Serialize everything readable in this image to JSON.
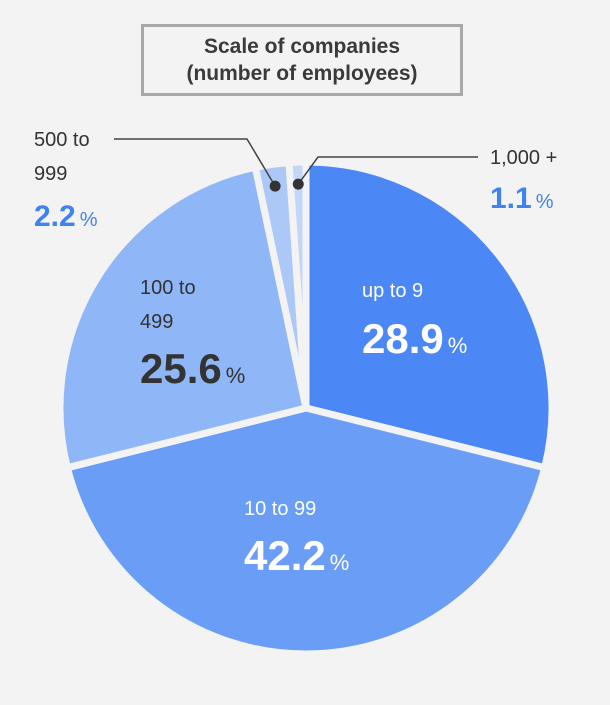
{
  "chart_data": {
    "type": "pie",
    "title_lines": [
      "Scale of companies",
      "(number of employees)"
    ],
    "colors": {
      "up_to_9": "#4b88f5",
      "10_to_99": "#6a9df5",
      "100_to_499": "#8fb6f6",
      "500_to_999": "#abc8f7",
      "1000_plus": "#c2d6f8",
      "separator": "#f3f3f3",
      "leader": "#444444",
      "blue_text": "#3f82f2",
      "dark_text": "#333333",
      "white_text": "#ffffff"
    },
    "slices": [
      {
        "key": "up_to_9",
        "label_lines": [
          "up to 9"
        ],
        "value": 28.9,
        "value_text": "28.9",
        "unit": "%"
      },
      {
        "key": "10_to_99",
        "label_lines": [
          "10 to 99"
        ],
        "value": 42.2,
        "value_text": "42.2",
        "unit": "%"
      },
      {
        "key": "100_to_499",
        "label_lines": [
          "100 to",
          "499"
        ],
        "value": 25.6,
        "value_text": "25.6",
        "unit": "%"
      },
      {
        "key": "500_to_999",
        "label_lines": [
          "500 to",
          "999"
        ],
        "value": 2.2,
        "value_text": "2.2",
        "unit": "%"
      },
      {
        "key": "1000_plus",
        "label_lines": [
          "1,000 +"
        ],
        "value": 1.1,
        "value_text": "1.1",
        "unit": "%"
      }
    ]
  }
}
